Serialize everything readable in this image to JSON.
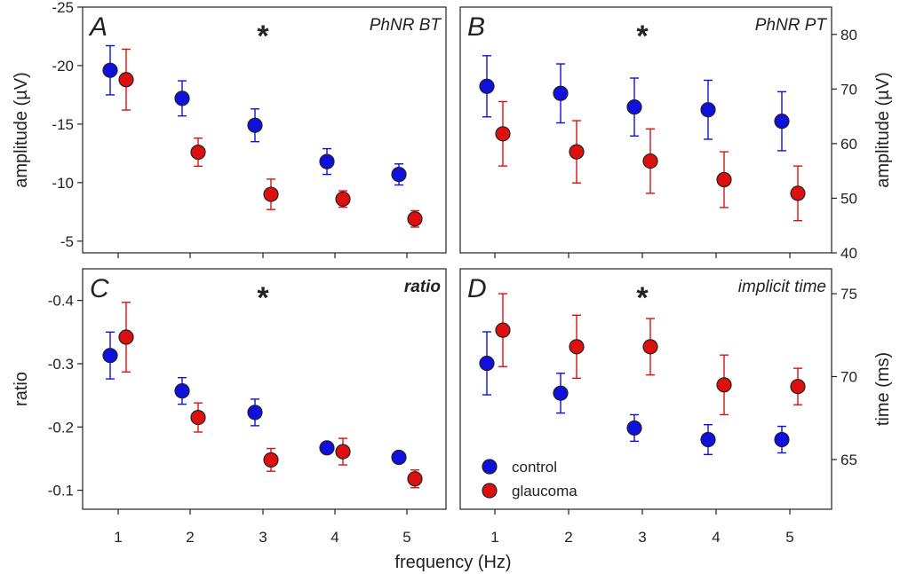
{
  "figure": {
    "xlabel": "frequency (Hz)",
    "legend": [
      {
        "name": "control",
        "color": "#1010dd"
      },
      {
        "name": "glaucoma",
        "color": "#dd1010"
      }
    ]
  },
  "chart_data": [
    {
      "type": "scatter",
      "panel": "A",
      "title": "PhNR BT",
      "significance": "*",
      "ylabel": "amplitude (µV)",
      "yaxis_side": "left",
      "y_inverted": true,
      "ylim": [
        -4,
        -25
      ],
      "yticks": [
        -25,
        -20,
        -15,
        -10,
        -5
      ],
      "x": [
        1,
        2,
        3,
        4,
        5
      ],
      "series": [
        {
          "name": "control",
          "color": "#1010dd",
          "values": [
            -19.6,
            -17.2,
            -14.9,
            -11.8,
            -10.7
          ],
          "errors": [
            2.1,
            1.5,
            1.4,
            1.1,
            0.9
          ]
        },
        {
          "name": "glaucoma",
          "color": "#dd1010",
          "values": [
            -18.8,
            -12.6,
            -9.0,
            -8.6,
            -6.9
          ],
          "errors": [
            2.6,
            1.2,
            1.3,
            0.7,
            0.7
          ]
        }
      ]
    },
    {
      "type": "scatter",
      "panel": "B",
      "title": "PhNR PT",
      "significance": "*",
      "ylabel": "amplitude (µV)",
      "yaxis_side": "right",
      "y_inverted": false,
      "ylim": [
        40,
        85
      ],
      "yticks": [
        40,
        50,
        60,
        70,
        80
      ],
      "x": [
        1,
        2,
        3,
        4,
        5
      ],
      "series": [
        {
          "name": "control",
          "color": "#1010dd",
          "values": [
            70.5,
            69.2,
            66.7,
            66.2,
            64.1
          ],
          "errors": [
            5.6,
            5.4,
            5.3,
            5.4,
            5.4
          ]
        },
        {
          "name": "glaucoma",
          "color": "#dd1010",
          "values": [
            61.8,
            58.5,
            56.8,
            53.4,
            50.9
          ],
          "errors": [
            5.9,
            5.7,
            5.9,
            5.1,
            5.0
          ]
        }
      ]
    },
    {
      "type": "scatter",
      "panel": "C",
      "title": "ratio",
      "significance": "*",
      "ylabel": "ratio",
      "yaxis_side": "left",
      "y_inverted": true,
      "ylim": [
        -0.07,
        -0.45
      ],
      "yticks": [
        -0.4,
        -0.3,
        -0.2,
        -0.1
      ],
      "x": [
        1,
        2,
        3,
        4,
        5
      ],
      "series": [
        {
          "name": "control",
          "color": "#1010dd",
          "values": [
            -0.313,
            -0.257,
            -0.223,
            -0.167,
            -0.152
          ],
          "errors": [
            0.037,
            0.021,
            0.021,
            0.007,
            0.004
          ]
        },
        {
          "name": "glaucoma",
          "color": "#dd1010",
          "values": [
            -0.342,
            -0.215,
            -0.148,
            -0.161,
            -0.118
          ],
          "errors": [
            0.055,
            0.023,
            0.018,
            0.021,
            0.014
          ]
        }
      ]
    },
    {
      "type": "scatter",
      "panel": "D",
      "title": "implicit time",
      "significance": "*",
      "ylabel": "time (ms)",
      "yaxis_side": "right",
      "y_inverted": false,
      "ylim": [
        62,
        76.5
      ],
      "yticks": [
        65,
        70,
        75
      ],
      "x": [
        1,
        2,
        3,
        4,
        5
      ],
      "series": [
        {
          "name": "control",
          "color": "#1010dd",
          "values": [
            70.8,
            69.0,
            66.9,
            66.2,
            66.2
          ],
          "errors": [
            1.9,
            1.2,
            0.8,
            0.9,
            0.8
          ]
        },
        {
          "name": "glaucoma",
          "color": "#dd1010",
          "values": [
            72.8,
            71.8,
            71.8,
            69.5,
            69.4
          ],
          "errors": [
            2.2,
            1.9,
            1.7,
            1.8,
            1.1
          ]
        }
      ]
    }
  ]
}
